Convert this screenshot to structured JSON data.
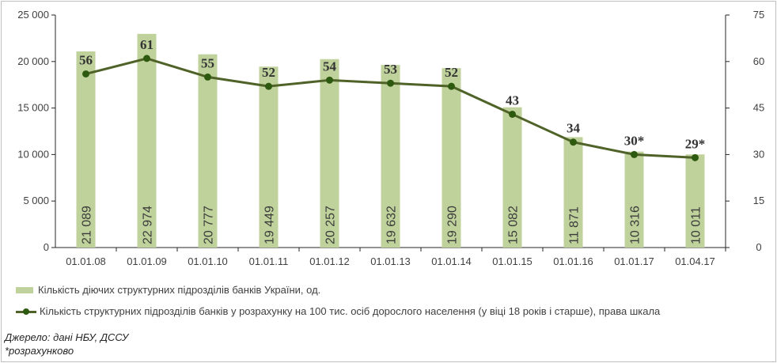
{
  "chart_data": {
    "type": "bar",
    "categories": [
      "01.01.08",
      "01.01.09",
      "01.01.10",
      "01.01.11",
      "01.01.12",
      "01.01.13",
      "01.01.14",
      "01.01.15",
      "01.01.16",
      "01.01.17",
      "01.04.17"
    ],
    "series": [
      {
        "name": "Кількість діючих структурних підрозділів банків України, од.",
        "type": "bar",
        "axis": "left",
        "values": [
          21089,
          22974,
          20777,
          19449,
          20257,
          19632,
          19290,
          15082,
          11871,
          10316,
          10011
        ],
        "labels": [
          "21 089",
          "22 974",
          "20 777",
          "19 449",
          "20 257",
          "19 632",
          "19 290",
          "15 082",
          "11 871",
          "10 316",
          "10 011"
        ],
        "color": "#bfd29b"
      },
      {
        "name": "Кількість структурних підрозділів банків у розрахунку на 100 тис. осіб дорослого населення (у віці 18 років і старше), права шкала",
        "type": "line",
        "axis": "right",
        "values": [
          56,
          61,
          55,
          52,
          54,
          53,
          52,
          43,
          34,
          30,
          29
        ],
        "labels": [
          "56",
          "61",
          "55",
          "52",
          "54",
          "53",
          "52",
          "43",
          "34",
          "30*",
          "29*"
        ],
        "color": "#4f6228"
      }
    ],
    "left_axis": {
      "ylim": [
        0,
        25000
      ],
      "ticks": [
        "0",
        "5 000",
        "10 000",
        "15 000",
        "20 000",
        "25 000"
      ]
    },
    "right_axis": {
      "ylim": [
        0,
        75
      ],
      "ticks": [
        "0",
        "15",
        "30",
        "45",
        "60",
        "75"
      ]
    },
    "grid": false,
    "legend_position": "bottom"
  },
  "notes": {
    "source": "Джерело: дані НБУ, ДССУ",
    "footnote": "*розрахунково"
  }
}
